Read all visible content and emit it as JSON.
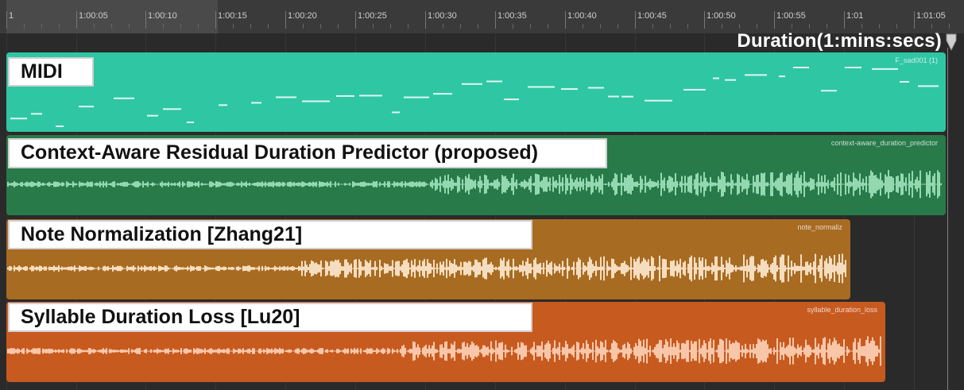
{
  "ruler": {
    "ticks": [
      "1",
      "1:00:05",
      "1:00:10",
      "1:00:15",
      "1:00:20",
      "1:00:25",
      "1:00:30",
      "1:00:35",
      "1:00:40",
      "1:00:45",
      "1:00:50",
      "1:00:55",
      "1:01",
      "1:01:05"
    ]
  },
  "duration_label": "Duration(1:mins:secs)",
  "playhead_icon": "playhead-marker-icon",
  "tracks": [
    {
      "label": "MIDI",
      "region_name": "F_sad001 (1)",
      "color": "#2fc6a4",
      "kind": "midi"
    },
    {
      "label": "Context-Aware Residual Duration Predictor (proposed)",
      "region_name": "context-aware_duration_predictor",
      "color": "#287a49",
      "wave_color": "#93d8b0",
      "kind": "audio"
    },
    {
      "label": "Note Normalization [Zhang21]",
      "region_name": "note_normaliz",
      "color": "#a76b22",
      "wave_color": "#f6ddbf",
      "kind": "audio"
    },
    {
      "label": "Syllable Duration Loss [Lu20]",
      "region_name": "syllable_duration_loss",
      "color": "#c75a1f",
      "wave_color": "#f8c6a9",
      "kind": "audio"
    }
  ]
}
